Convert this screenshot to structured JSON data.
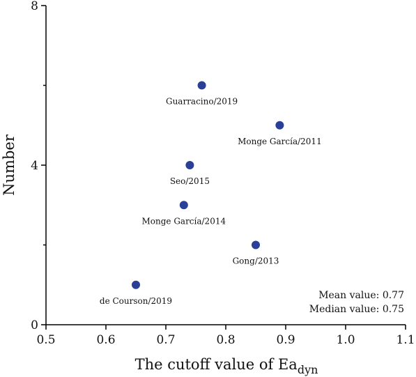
{
  "chart_data": {
    "type": "scatter",
    "title": "",
    "xlabel": "The cutoff value of Ea",
    "xlabel_subscript": "dyn",
    "ylabel": "Number",
    "xlim": [
      0.5,
      1.1
    ],
    "ylim": [
      0,
      8
    ],
    "x_ticks": [
      "0.5",
      "0.6",
      "0.7",
      "0.8",
      "0.9",
      "1.0",
      "1.1"
    ],
    "y_ticks": [
      "0",
      "4",
      "8"
    ],
    "grid": false,
    "marker_color": "#2a3f96",
    "points": [
      {
        "label": "Guarracino/2019",
        "x": 0.76,
        "y": 6
      },
      {
        "label": "Monge García/2011",
        "x": 0.89,
        "y": 5
      },
      {
        "label": "Seo/2015",
        "x": 0.74,
        "y": 4
      },
      {
        "label": "Monge García/2014",
        "x": 0.73,
        "y": 3
      },
      {
        "label": "Gong/2013",
        "x": 0.85,
        "y": 2
      },
      {
        "label": "de Courson/2019",
        "x": 0.65,
        "y": 1
      }
    ],
    "annotations": {
      "mean": "Mean value: 0.77",
      "median": "Median value: 0.75"
    }
  }
}
